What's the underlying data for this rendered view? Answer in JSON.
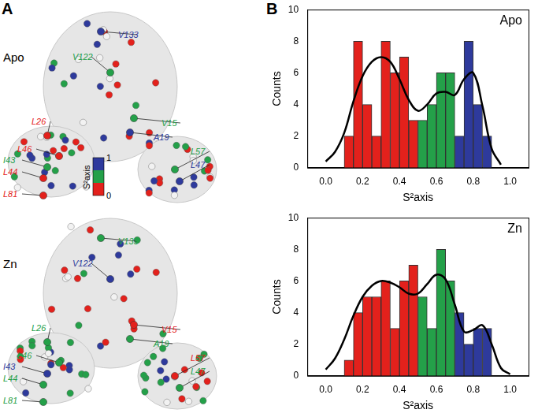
{
  "panel_a": {
    "label": "A",
    "colorbar": {
      "title": "S²axis",
      "ticks": [
        0,
        1
      ],
      "colors": [
        "#e3211c",
        "#24a049",
        "#2e3a9c"
      ]
    },
    "structures": [
      {
        "title": "Apo",
        "residues": [
          {
            "name": "V133",
            "color": "#2e3a9c"
          },
          {
            "name": "V122",
            "color": "#24a049"
          },
          {
            "name": "L26",
            "color": "#e3211c"
          },
          {
            "name": "V15",
            "color": "#24a049"
          },
          {
            "name": "A19",
            "color": "#2e3a9c"
          },
          {
            "name": "L46",
            "color": "#e3211c"
          },
          {
            "name": "I43",
            "color": "#24a049"
          },
          {
            "name": "L44",
            "color": "#e3211c"
          },
          {
            "name": "L81",
            "color": "#e3211c"
          },
          {
            "name": "L57",
            "color": "#24a049"
          },
          {
            "name": "L47",
            "color": "#2e3a9c"
          }
        ]
      },
      {
        "title": "Zn",
        "residues": [
          {
            "name": "V133",
            "color": "#24a049"
          },
          {
            "name": "V122",
            "color": "#2e3a9c"
          },
          {
            "name": "L26",
            "color": "#24a049"
          },
          {
            "name": "V15",
            "color": "#e3211c"
          },
          {
            "name": "A19",
            "color": "#24a049"
          },
          {
            "name": "L46",
            "color": "#24a049"
          },
          {
            "name": "I43",
            "color": "#2e3a9c"
          },
          {
            "name": "L44",
            "color": "#24a049"
          },
          {
            "name": "L81",
            "color": "#24a049"
          },
          {
            "name": "L57",
            "color": "#e3211c"
          },
          {
            "name": "L47",
            "color": "#24a049"
          }
        ]
      }
    ]
  },
  "panel_b_label": "B",
  "chart_data": [
    {
      "type": "bar",
      "title": "Apo",
      "xlabel": "S²axis",
      "ylabel": "Counts",
      "bins": [
        0.1,
        0.15,
        0.2,
        0.25,
        0.3,
        0.35,
        0.4,
        0.45,
        0.5,
        0.55,
        0.6,
        0.65,
        0.7,
        0.75,
        0.8,
        0.85,
        0.9
      ],
      "values": [
        2,
        8,
        4,
        2,
        8,
        6,
        7,
        3,
        3,
        4,
        6,
        6,
        2,
        8,
        4,
        2
      ],
      "colors": [
        "#e3211c",
        "#e3211c",
        "#e3211c",
        "#e3211c",
        "#e3211c",
        "#e3211c",
        "#e3211c",
        "#e3211c",
        "#24a049",
        "#24a049",
        "#24a049",
        "#24a049",
        "#2e3a9c",
        "#2e3a9c",
        "#2e3a9c",
        "#2e3a9c"
      ],
      "fit": {
        "color": "#000000",
        "x": [
          0,
          0.05,
          0.1,
          0.15,
          0.2,
          0.25,
          0.3,
          0.35,
          0.4,
          0.45,
          0.5,
          0.55,
          0.6,
          0.65,
          0.7,
          0.75,
          0.8,
          0.85,
          0.9,
          0.95
        ],
        "values": [
          0.4,
          1.0,
          2.2,
          4.2,
          5.8,
          6.7,
          7.0,
          6.7,
          5.6,
          4.3,
          3.6,
          4.0,
          4.7,
          4.8,
          4.6,
          5.6,
          6.0,
          3.9,
          1.2,
          0.2
        ]
      },
      "xlim": [
        0,
        1
      ],
      "xticks": [
        {
          "value": 0,
          "label": "0.0"
        },
        {
          "value": 0.2,
          "label": "0.2"
        },
        {
          "value": 0.4,
          "label": "0.4"
        },
        {
          "value": 0.6,
          "label": "0.6"
        },
        {
          "value": 0.8,
          "label": "0.8"
        },
        {
          "value": 1,
          "label": "1.0"
        }
      ],
      "ylim": [
        0,
        10
      ],
      "yticks": [
        0,
        2,
        4,
        6,
        8,
        10
      ]
    },
    {
      "type": "bar",
      "title": "Zn",
      "xlabel": "S²axis",
      "ylabel": "Counts",
      "bins": [
        0.1,
        0.15,
        0.2,
        0.25,
        0.3,
        0.35,
        0.4,
        0.45,
        0.5,
        0.55,
        0.6,
        0.65,
        0.7,
        0.75,
        0.8,
        0.85,
        0.9
      ],
      "values": [
        1,
        4,
        5,
        5,
        6,
        3,
        6,
        7,
        5,
        3,
        8,
        6,
        4,
        2,
        3,
        3
      ],
      "colors": [
        "#e3211c",
        "#e3211c",
        "#e3211c",
        "#e3211c",
        "#e3211c",
        "#e3211c",
        "#e3211c",
        "#e3211c",
        "#24a049",
        "#24a049",
        "#24a049",
        "#24a049",
        "#2e3a9c",
        "#2e3a9c",
        "#2e3a9c",
        "#2e3a9c"
      ],
      "fit": {
        "color": "#000000",
        "x": [
          0,
          0.05,
          0.1,
          0.15,
          0.2,
          0.25,
          0.3,
          0.35,
          0.4,
          0.45,
          0.5,
          0.55,
          0.6,
          0.65,
          0.7,
          0.75,
          0.8,
          0.85,
          0.9,
          0.95,
          1
        ],
        "values": [
          0.4,
          1.1,
          2.3,
          3.8,
          5.0,
          5.7,
          6.0,
          5.9,
          5.6,
          5.2,
          5.2,
          5.8,
          6.4,
          6.1,
          4.5,
          2.8,
          2.9,
          3.2,
          2.0,
          0.5,
          0.1
        ]
      },
      "xlim": [
        0,
        1
      ],
      "xticks": [
        {
          "value": 0,
          "label": "0.0"
        },
        {
          "value": 0.2,
          "label": "0.2"
        },
        {
          "value": 0.4,
          "label": "0.4"
        },
        {
          "value": 0.6,
          "label": "0.6"
        },
        {
          "value": 0.8,
          "label": "0.8"
        },
        {
          "value": 1,
          "label": "1.0"
        }
      ],
      "ylim": [
        0,
        10
      ],
      "yticks": [
        0,
        2,
        4,
        6,
        8,
        10
      ]
    }
  ]
}
